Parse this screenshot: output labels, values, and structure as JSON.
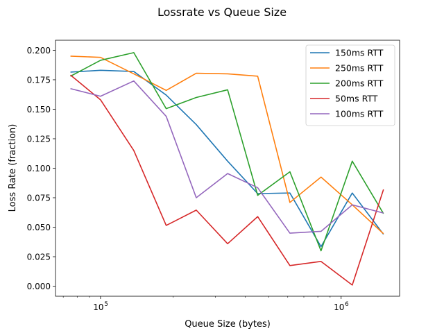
{
  "chart_data": {
    "type": "line",
    "title": "Lossrate vs Queue Size",
    "xlabel": "Queue Size (bytes)",
    "ylabel": "Loss Rate (fraction)",
    "xscale": "log",
    "xlim": [
      65000,
      1750000
    ],
    "ylim": [
      -0.0085,
      0.2085
    ],
    "x": [
      75000,
      100000,
      137500,
      187500,
      250000,
      337500,
      450000,
      612500,
      825000,
      1112500,
      1500000
    ],
    "y_ticks": [
      0.0,
      0.025,
      0.05,
      0.075,
      0.1,
      0.125,
      0.15,
      0.175,
      0.2
    ],
    "y_tick_labels": [
      "0.000",
      "0.025",
      "0.050",
      "0.075",
      "0.100",
      "0.125",
      "0.150",
      "0.175",
      "0.200"
    ],
    "x_ticks": [
      {
        "value": 100000,
        "base": "10",
        "exp": "5"
      },
      {
        "value": 1000000,
        "base": "10",
        "exp": "6"
      }
    ],
    "grid": false,
    "legend_position": "top-right",
    "series": [
      {
        "name": "150ms RTT",
        "color": "#1f77b4",
        "values": [
          0.1815,
          0.183,
          0.182,
          0.162,
          0.137,
          0.106,
          0.0785,
          0.079,
          0.0335,
          0.079,
          0.044
        ]
      },
      {
        "name": "250ms RTT",
        "color": "#ff7f0e",
        "values": [
          0.195,
          0.194,
          0.18,
          0.166,
          0.1805,
          0.18,
          0.178,
          0.071,
          0.0925,
          0.069,
          0.0445
        ]
      },
      {
        "name": "200ms RTT",
        "color": "#2ca02c",
        "values": [
          0.178,
          0.1915,
          0.198,
          0.1505,
          0.16,
          0.1665,
          0.077,
          0.097,
          0.03,
          0.106,
          0.0615
        ]
      },
      {
        "name": "50ms RTT",
        "color": "#d62728",
        "values": [
          0.179,
          0.158,
          0.115,
          0.0515,
          0.0645,
          0.036,
          0.059,
          0.0175,
          0.021,
          0.001,
          0.082
        ]
      },
      {
        "name": "100ms RTT",
        "color": "#9467bd",
        "values": [
          0.1675,
          0.161,
          0.174,
          0.144,
          0.075,
          0.0955,
          0.0835,
          0.045,
          0.0465,
          0.069,
          0.062
        ]
      }
    ]
  }
}
